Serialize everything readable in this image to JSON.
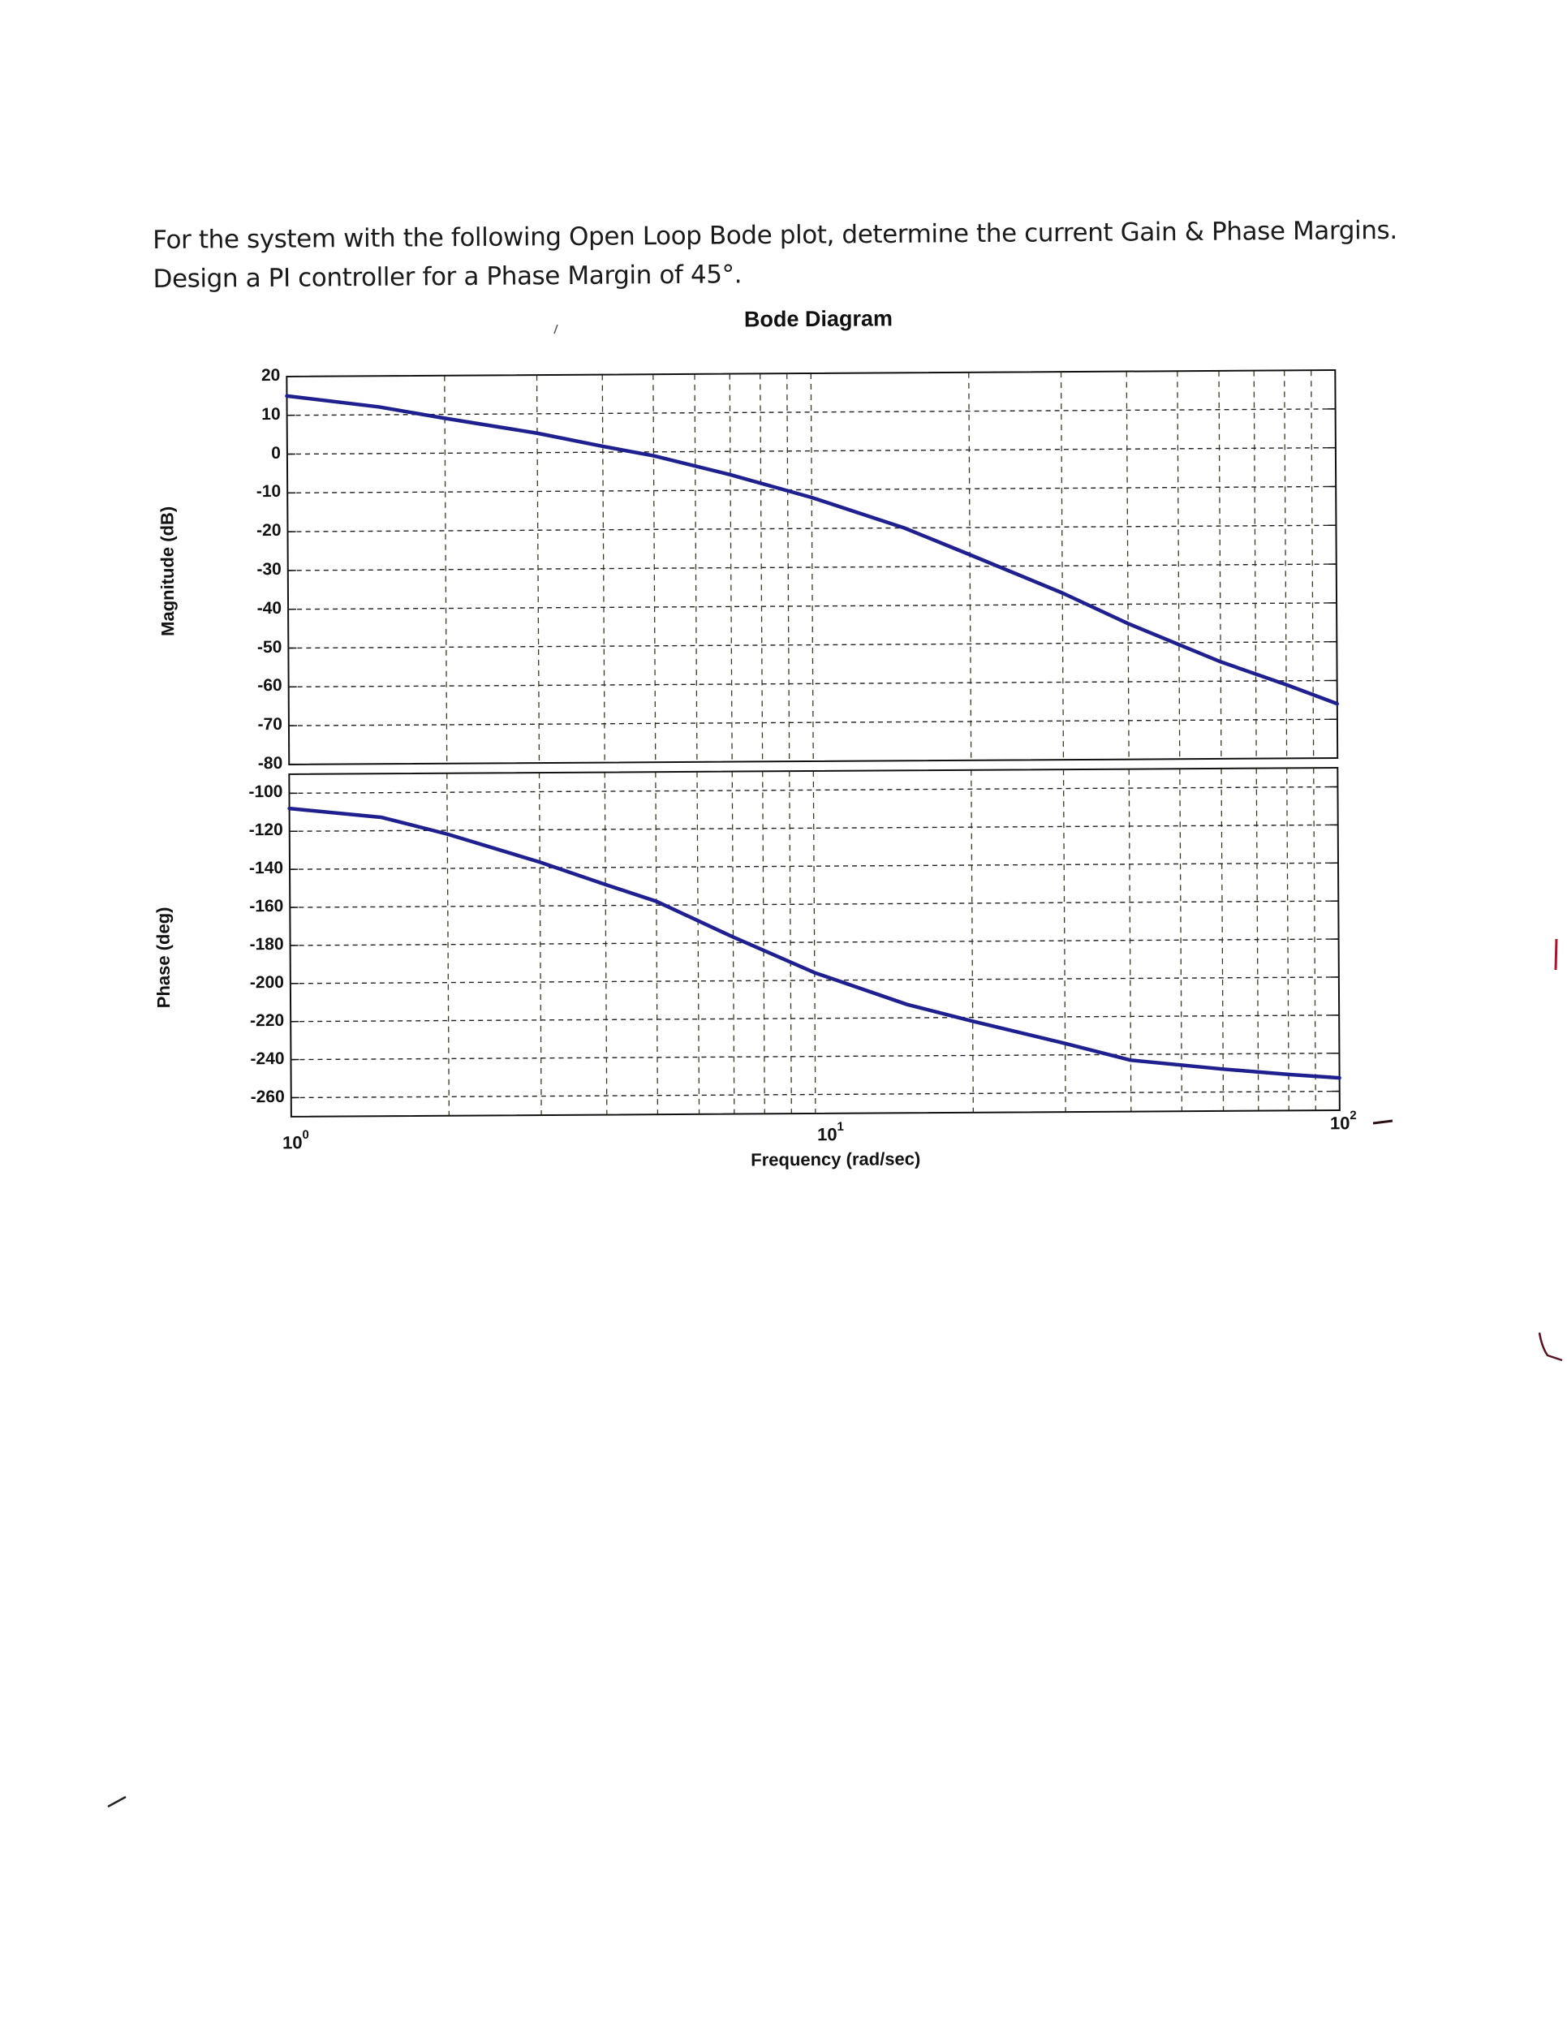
{
  "question": {
    "line1": "For the system with the following Open Loop Bode plot, determine the current Gain & Phase Margins.",
    "line2": "Design a PI controller for a Phase Margin of 45°."
  },
  "figure": {
    "title": "Bode Diagram",
    "magnitude_ylabel": "Magnitude (dB)",
    "phase_ylabel": "Phase (deg)",
    "xlabel": "Frequency (rad/sec)",
    "x_ticks": [
      {
        "base": "10",
        "exp": "0"
      },
      {
        "base": "10",
        "exp": "1"
      },
      {
        "base": "10",
        "exp": "2"
      }
    ],
    "magnitude_ticks": [
      "20",
      "10",
      "0",
      "-10",
      "-20",
      "-30",
      "-40",
      "-50",
      "-60",
      "-70",
      "-80"
    ],
    "phase_ticks": [
      "-100",
      "-120",
      "-140",
      "-160",
      "-180",
      "-200",
      "-220",
      "-240",
      "-260"
    ],
    "line_color": "#1f1f8f"
  },
  "chart_data": [
    {
      "type": "line",
      "title": "Bode Diagram",
      "panel": "magnitude",
      "xlabel": "Frequency (rad/sec)",
      "ylabel": "Magnitude (dB)",
      "xscale": "log",
      "xlim": [
        1,
        100
      ],
      "ylim": [
        -80,
        20
      ],
      "x_tick_labels": [
        "10^0",
        "10^1",
        "10^2"
      ],
      "y_tick_labels": [
        20,
        10,
        0,
        -10,
        -20,
        -30,
        -40,
        -50,
        -60,
        -70,
        -80
      ],
      "grid": true,
      "series": [
        {
          "name": "Magnitude",
          "x": [
            1,
            1.5,
            2,
            3,
            4,
            5,
            7,
            10,
            15,
            20,
            30,
            40,
            60,
            80,
            100
          ],
          "values": [
            15,
            12,
            9,
            5,
            1.5,
            -1,
            -6,
            -12,
            -20,
            -27,
            -37,
            -45,
            -55,
            -61,
            -66
          ]
        }
      ]
    },
    {
      "type": "line",
      "panel": "phase",
      "xlabel": "Frequency (rad/sec)",
      "ylabel": "Phase (deg)",
      "xscale": "log",
      "xlim": [
        1,
        100
      ],
      "ylim": [
        -270,
        -90
      ],
      "x_tick_labels": [
        "10^0",
        "10^1",
        "10^2"
      ],
      "y_tick_labels": [
        -100,
        -120,
        -140,
        -160,
        -180,
        -200,
        -220,
        -240,
        -260
      ],
      "grid": true,
      "series": [
        {
          "name": "Phase",
          "x": [
            1,
            1.5,
            2,
            3,
            4,
            5,
            7,
            10,
            15,
            20,
            30,
            40,
            60,
            80,
            100
          ],
          "values": [
            -108,
            -113,
            -122,
            -137,
            -149,
            -158,
            -177,
            -196,
            -213,
            -222,
            -234,
            -243,
            -248,
            -251,
            -253
          ]
        }
      ]
    }
  ]
}
